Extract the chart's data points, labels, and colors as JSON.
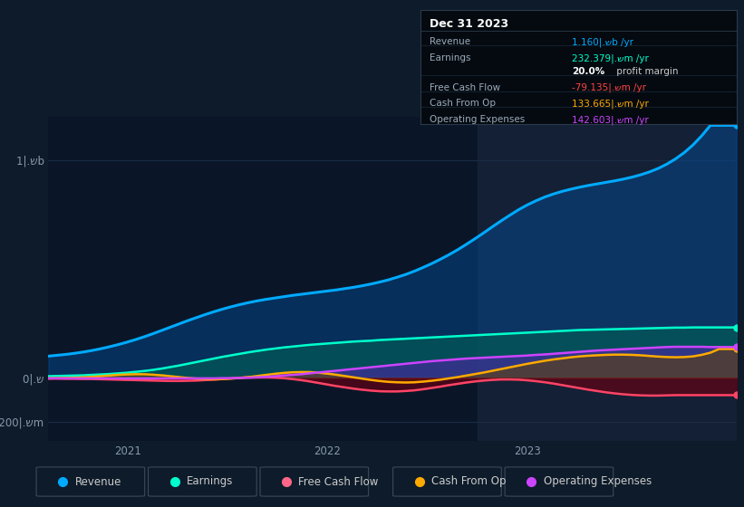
{
  "bg_color": "#0d1b2a",
  "plot_bg_color": "#0a1628",
  "grid_color": "#1a2d45",
  "zero_line_color": "#cccccc",
  "highlight_color": "#142035",
  "ylim": [
    -290,
    1200
  ],
  "yticks": [
    -200,
    0,
    1000
  ],
  "ytick_labels": [
    "-200|⁠.שm",
    "0|⁠.ש",
    "1|⁠.שb"
  ],
  "xlim_start": 2020.6,
  "xlim_end": 2024.05,
  "xtick_positions": [
    2021.0,
    2022.0,
    2023.0
  ],
  "xtick_labels": [
    "2021",
    "2022",
    "2023"
  ],
  "highlight_x_start": 2022.75,
  "highlight_x_end": 2024.05,
  "info_box": {
    "title": "Dec 31 2023",
    "rows": [
      {
        "label": "Revenue",
        "value": "1.160|.שb /yr",
        "value_color": "#00aaff"
      },
      {
        "label": "Earnings",
        "value": "232.379|.שm /yr",
        "value_color": "#00ffcc"
      },
      {
        "label": "",
        "value": "20.0%",
        "value_color": "#ffffff",
        "suffix": " profit margin",
        "bold": true
      },
      {
        "label": "Free Cash Flow",
        "value": "-79.135|.שm /yr",
        "value_color": "#ff4444"
      },
      {
        "label": "Cash From Op",
        "value": "133.665|.שm /yr",
        "value_color": "#ffaa00"
      },
      {
        "label": "Operating Expenses",
        "value": "142.603|.שm /yr",
        "value_color": "#cc44ff"
      }
    ]
  },
  "legend": [
    {
      "label": "Revenue",
      "color": "#00aaff"
    },
    {
      "label": "Earnings",
      "color": "#00ffcc"
    },
    {
      "label": "Free Cash Flow",
      "color": "#ff6688"
    },
    {
      "label": "Cash From Op",
      "color": "#ffaa00"
    },
    {
      "label": "Operating Expenses",
      "color": "#cc44ff"
    }
  ],
  "revenue": [
    100,
    104,
    108,
    113,
    119,
    126,
    134,
    143,
    153,
    164,
    176,
    189,
    203,
    218,
    233,
    248,
    263,
    277,
    291,
    304,
    316,
    327,
    337,
    346,
    354,
    361,
    367,
    373,
    379,
    384,
    389,
    394,
    399,
    404,
    410,
    416,
    423,
    431,
    440,
    450,
    462,
    475,
    490,
    507,
    525,
    545,
    566,
    589,
    614,
    640,
    667,
    695,
    722,
    748,
    773,
    795,
    814,
    831,
    845,
    857,
    867,
    876,
    884,
    891,
    898,
    905,
    913,
    922,
    933,
    946,
    962,
    982,
    1006,
    1035,
    1070,
    1112,
    1160,
    1160,
    1160,
    1160
  ],
  "earnings": [
    8,
    9,
    10,
    11,
    12,
    14,
    16,
    18,
    21,
    24,
    28,
    32,
    37,
    43,
    50,
    57,
    65,
    73,
    81,
    89,
    97,
    104,
    111,
    118,
    124,
    130,
    135,
    140,
    144,
    148,
    152,
    155,
    158,
    161,
    164,
    167,
    169,
    171,
    174,
    176,
    178,
    180,
    182,
    184,
    186,
    188,
    190,
    192,
    194,
    196,
    198,
    200,
    202,
    204,
    206,
    208,
    210,
    212,
    214,
    216,
    218,
    220,
    221,
    222,
    223,
    224,
    225,
    226,
    227,
    228,
    229,
    230,
    231,
    231,
    232,
    232,
    232,
    232,
    232,
    232
  ],
  "free_cash_flow": [
    -3,
    -3,
    -4,
    -4,
    -5,
    -5,
    -6,
    -7,
    -8,
    -9,
    -10,
    -11,
    -12,
    -13,
    -14,
    -14,
    -13,
    -12,
    -10,
    -8,
    -5,
    -2,
    1,
    4,
    5,
    4,
    2,
    -1,
    -5,
    -10,
    -16,
    -23,
    -30,
    -37,
    -43,
    -49,
    -54,
    -58,
    -61,
    -62,
    -62,
    -60,
    -57,
    -52,
    -46,
    -40,
    -33,
    -27,
    -21,
    -16,
    -12,
    -9,
    -7,
    -7,
    -8,
    -11,
    -15,
    -20,
    -26,
    -33,
    -40,
    -47,
    -54,
    -60,
    -66,
    -71,
    -75,
    -78,
    -80,
    -81,
    -81,
    -80,
    -79,
    -79,
    -79,
    -79,
    -79,
    -79,
    -79,
    -79
  ],
  "cash_from_op": [
    -2,
    -1,
    0,
    1,
    3,
    5,
    8,
    11,
    14,
    16,
    17,
    17,
    15,
    12,
    8,
    4,
    0,
    -3,
    -5,
    -6,
    -5,
    -3,
    0,
    4,
    9,
    14,
    19,
    23,
    26,
    27,
    27,
    24,
    20,
    15,
    9,
    3,
    -3,
    -9,
    -14,
    -18,
    -20,
    -21,
    -20,
    -17,
    -13,
    -8,
    -2,
    4,
    11,
    18,
    25,
    33,
    41,
    49,
    57,
    65,
    72,
    79,
    85,
    90,
    95,
    99,
    102,
    104,
    106,
    107,
    107,
    106,
    104,
    101,
    98,
    96,
    95,
    96,
    99,
    106,
    116,
    133,
    133,
    133
  ],
  "op_expenses": [
    -2,
    -2,
    -2,
    -2,
    -2,
    -2,
    -2,
    -2,
    -2,
    -2,
    -2,
    -2,
    -2,
    -2,
    -2,
    -2,
    -2,
    -2,
    -2,
    -2,
    -1,
    -1,
    0,
    1,
    3,
    5,
    8,
    11,
    14,
    17,
    21,
    25,
    29,
    33,
    37,
    41,
    45,
    49,
    53,
    57,
    61,
    65,
    69,
    73,
    77,
    80,
    83,
    86,
    89,
    91,
    93,
    95,
    97,
    99,
    101,
    103,
    106,
    108,
    111,
    114,
    117,
    120,
    123,
    126,
    128,
    130,
    132,
    134,
    136,
    138,
    140,
    142,
    143,
    143,
    143,
    143,
    142,
    142,
    142,
    142
  ]
}
